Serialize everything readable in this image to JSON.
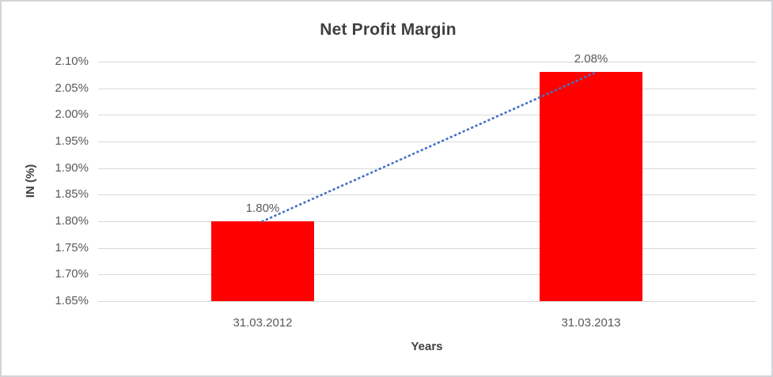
{
  "frame": {
    "background": "#ffffff",
    "border_color": "#d2d4d6"
  },
  "chart_data": {
    "type": "bar",
    "title": "Net Profit Margin",
    "categories": [
      "31.03.2012",
      "31.03.2013"
    ],
    "values": [
      1.8,
      2.08
    ],
    "data_labels": [
      "1.80%",
      "2.08%"
    ],
    "xlabel": "Years",
    "ylabel": "IN (%)",
    "ylim": [
      1.65,
      2.1
    ],
    "ytick_step": 0.05,
    "ytick_labels": [
      "1.65%",
      "1.70%",
      "1.75%",
      "1.80%",
      "1.85%",
      "1.90%",
      "1.95%",
      "2.00%",
      "2.05%",
      "2.10%"
    ],
    "grid": true,
    "legend": "none",
    "bar_color": "#ff0000",
    "gridline_color": "#d9d9d9",
    "text_color": "#595959",
    "title_color": "#404040",
    "trendline": {
      "type": "linear",
      "style": "dotted",
      "color": "#4472c4",
      "from_value": 1.8,
      "to_value": 2.08
    }
  }
}
